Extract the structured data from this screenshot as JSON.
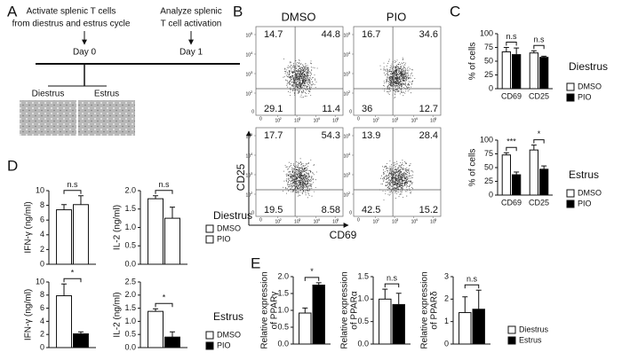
{
  "panel_labels": [
    "A",
    "B",
    "C",
    "D",
    "E"
  ],
  "schematic": {
    "step1": [
      "Activate splenic T cells",
      "from diestrus and estrus cycle"
    ],
    "step2": [
      "Analyze splenic",
      "T cell activation"
    ],
    "day0": "Day 0",
    "day1": "Day 1",
    "images": [
      "Diestrus",
      "Estrus"
    ]
  },
  "flow": {
    "columns": [
      "DMSO",
      "PIO"
    ],
    "xlabel": "CD69",
    "ylabel": "CD25",
    "zero": "0",
    "ticks": [
      {
        "base": "10",
        "exp": 2
      },
      {
        "base": "10",
        "exp": 3
      },
      {
        "base": "10",
        "exp": 4
      },
      {
        "base": "10",
        "exp": 5
      }
    ],
    "plots": [
      [
        [
          14.7,
          44.8,
          29.1,
          11.4
        ],
        [
          16.7,
          34.6,
          36,
          12.7
        ]
      ],
      [
        [
          17.7,
          54.3,
          19.5,
          8.58
        ],
        [
          13.9,
          28.4,
          42.5,
          15.2
        ]
      ]
    ]
  },
  "chart_data": [
    {
      "type": "bar",
      "ylabel": "% of cells",
      "categories": [
        "CD69",
        "CD25"
      ],
      "series": [
        {
          "name": "DMSO",
          "color": "#ffffff",
          "values": [
            67,
            65
          ],
          "errors": [
            8,
            4
          ]
        },
        {
          "name": "PIO",
          "color": "#000000",
          "values": [
            62,
            57
          ],
          "errors": [
            12,
            2
          ]
        }
      ],
      "ylim": [
        0,
        100
      ],
      "yticks": [
        0,
        25,
        50,
        75,
        100
      ],
      "significance": [
        "n.s",
        "n.s"
      ],
      "annotation": "Diestrus",
      "legend": "right"
    },
    {
      "type": "bar",
      "ylabel": "% of cells",
      "categories": [
        "CD69",
        "CD25"
      ],
      "series": [
        {
          "name": "DMSO",
          "color": "#ffffff",
          "values": [
            73,
            82
          ],
          "errors": [
            4,
            9
          ]
        },
        {
          "name": "PIO",
          "color": "#000000",
          "values": [
            37,
            47
          ],
          "errors": [
            5,
            6
          ]
        }
      ],
      "ylim": [
        0,
        100
      ],
      "yticks": [
        0,
        25,
        50,
        75,
        100
      ],
      "significance": [
        "***",
        "*"
      ],
      "annotation": "Estrus",
      "legend": "right"
    },
    {
      "type": "bar",
      "ylabel": "IFN-γ (ng/ml)",
      "series": [
        {
          "color": "#ffffff",
          "values": [
            7.4
          ],
          "errors": [
            0.7
          ]
        },
        {
          "color": "#ffffff",
          "values": [
            8.1
          ],
          "errors": [
            1.2
          ]
        }
      ],
      "ylim": [
        0,
        10
      ],
      "yticks": [
        0,
        2,
        4,
        6,
        8,
        10
      ],
      "significance": [
        "n.s"
      ]
    },
    {
      "type": "bar",
      "ylabel": "IL-2 (ng/ml)",
      "series": [
        {
          "name": "DMSO",
          "color": "#ffffff",
          "values": [
            1.78
          ],
          "errors": [
            0.08
          ]
        },
        {
          "name": "PIO",
          "color": "#ffffff",
          "values": [
            1.25
          ],
          "errors": [
            0.3
          ]
        }
      ],
      "ylim": [
        0,
        2
      ],
      "yticks": [
        {
          "value": 0,
          "label": "0.0"
        },
        0.5,
        {
          "value": 1,
          "label": "1.0"
        },
        1.5,
        {
          "value": 2,
          "label": "2.0"
        }
      ],
      "significance": [
        "n.s"
      ],
      "annotation": "Diestrus",
      "legend": "right"
    },
    {
      "type": "bar",
      "ylabel": "IFN-γ (ng/ml)",
      "series": [
        {
          "color": "#ffffff",
          "values": [
            7.9
          ],
          "errors": [
            1.8
          ]
        },
        {
          "color": "#000000",
          "values": [
            2.1
          ],
          "errors": [
            0.3
          ]
        }
      ],
      "ylim": [
        0,
        10
      ],
      "yticks": [
        0,
        2,
        4,
        6,
        8,
        10
      ],
      "significance": [
        "*"
      ]
    },
    {
      "type": "bar",
      "ylabel": "IL-2 (ng/ml)",
      "series": [
        {
          "name": "DMSO",
          "color": "#ffffff",
          "values": [
            1.38
          ],
          "errors": [
            0.1
          ]
        },
        {
          "name": "PIO",
          "color": "#000000",
          "values": [
            0.4
          ],
          "errors": [
            0.2
          ]
        }
      ],
      "ylim": [
        0,
        2.5
      ],
      "yticks": [
        {
          "value": 0,
          "label": "0.0"
        },
        0.5,
        {
          "value": 1,
          "label": "1.0"
        },
        1.5,
        {
          "value": 2,
          "label": "2.0"
        },
        2.5
      ],
      "significance": [
        "*"
      ],
      "annotation": "Estrus",
      "legend": "right"
    },
    {
      "type": "bar",
      "ylabel": [
        "Relative expression",
        "of PPARγ"
      ],
      "series": [
        {
          "color": "#ffffff",
          "values": [
            0.92
          ],
          "errors": [
            0.15
          ]
        },
        {
          "color": "#000000",
          "values": [
            1.75
          ],
          "errors": [
            0.07
          ]
        }
      ],
      "ylim": [
        0,
        2
      ],
      "yticks": [
        {
          "value": 0,
          "label": "0.0"
        },
        0.5,
        {
          "value": 1,
          "label": "1.0"
        },
        1.5,
        {
          "value": 2,
          "label": "2.0"
        }
      ],
      "significance": [
        "*"
      ]
    },
    {
      "type": "bar",
      "ylabel": [
        "Relative expression",
        "of PPARα"
      ],
      "series": [
        {
          "color": "#ffffff",
          "values": [
            1.0
          ],
          "errors": [
            0.22
          ]
        },
        {
          "color": "#000000",
          "values": [
            0.88
          ],
          "errors": [
            0.25
          ]
        }
      ],
      "ylim": [
        0,
        1.5
      ],
      "yticks": [
        {
          "value": 0,
          "label": "0.0"
        },
        0.5,
        {
          "value": 1,
          "label": "1.0"
        },
        1.5
      ],
      "significance": [
        "n.s"
      ]
    },
    {
      "type": "bar",
      "ylabel": [
        "Relative expression",
        "of PPARδ"
      ],
      "series": [
        {
          "name": "Diestrus",
          "color": "#ffffff",
          "values": [
            1.4
          ],
          "errors": [
            0.7
          ]
        },
        {
          "name": "Estrus",
          "color": "#000000",
          "values": [
            1.55
          ],
          "errors": [
            0.85
          ]
        }
      ],
      "ylim": [
        0,
        3
      ],
      "yticks": [
        0,
        1,
        2,
        3
      ],
      "significance": [
        "n.s"
      ],
      "legend": "right"
    }
  ]
}
